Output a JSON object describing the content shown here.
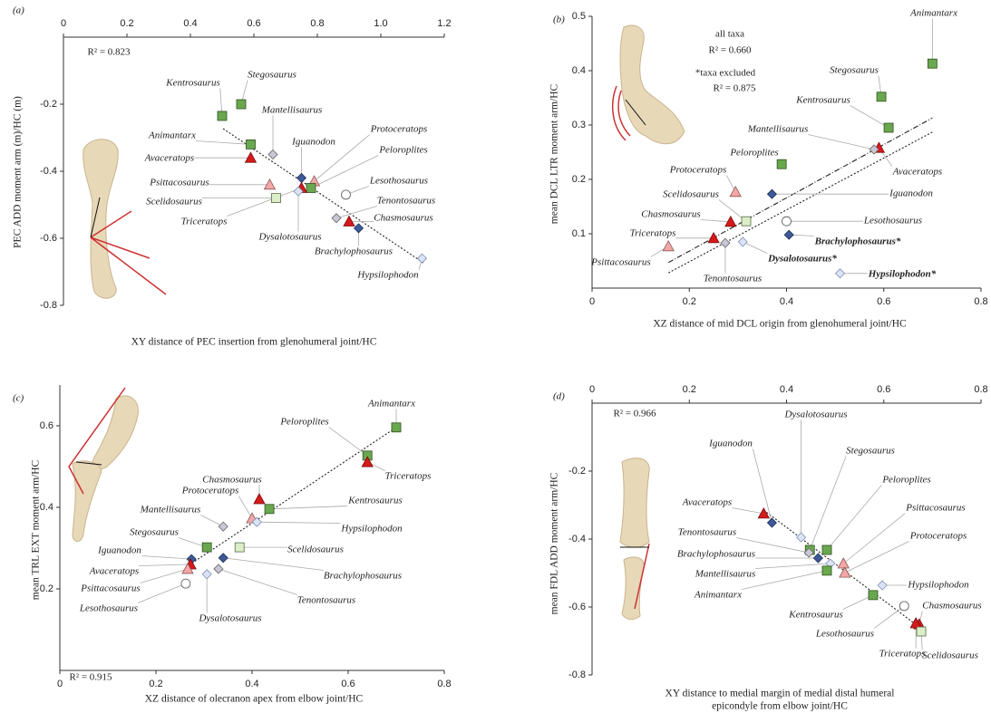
{
  "marker_styles": {
    "sq": {
      "shape": "square",
      "fill": "#6aa84f",
      "stroke": "#2f4f1f"
    },
    "sq-l": {
      "shape": "square",
      "fill": "#dcedc8",
      "stroke": "#556b4a"
    },
    "tri": {
      "shape": "triangle",
      "fill": "#d7191c",
      "stroke": "#7a0b0b"
    },
    "tri-l": {
      "shape": "triangle",
      "fill": "#f4a7a7",
      "stroke": "#8a5555"
    },
    "dia": {
      "shape": "diamond",
      "fill": "#3d5a98",
      "stroke": "#1f2f55"
    },
    "dia-l": {
      "shape": "diamond",
      "fill": "#dbe4f5",
      "stroke": "#7d8fb5"
    },
    "dia-g": {
      "shape": "diamond",
      "fill": "#c9c6d6",
      "stroke": "#666"
    },
    "circ": {
      "shape": "circle",
      "fill": "#ffffff",
      "stroke": "#555"
    }
  },
  "chart_data": [
    {
      "type": "scatter",
      "panel_label": "(a)",
      "y_label": "PEC ADD moment arm (m)/HC (m)",
      "x_label": [
        "XY distance of PEC insertion from glenohumeral joint/HC"
      ],
      "annotations": [
        "R² = 0.823"
      ],
      "x_axis": "top",
      "xlim": [
        0,
        1.2
      ],
      "ylim": [
        -0.8,
        0
      ],
      "xticks": [
        0,
        0.2,
        0.4,
        0.6,
        0.8,
        {
          "value": 1,
          "label": "1.0"
        },
        1.2
      ],
      "yticks": [
        -0.2,
        -0.4,
        -0.6,
        -0.8
      ],
      "labels": [
        "Kentrosaurus",
        "Stegosaurus",
        "Animantarx",
        "Avaceratops",
        "Mantellisaurus",
        "Iguanodon",
        "Protoceratops",
        "Peloroplites",
        "Triceratops",
        "Psittacosaurus",
        "Scelidosaurus",
        "Lesothosaurus",
        "Tenontosaurus",
        "Chasmosaurus",
        "Brachylophosaurus",
        "Hypsilophodon",
        "Dysalotosaurus"
      ],
      "x": [
        0.5,
        0.56,
        0.59,
        0.59,
        0.66,
        0.75,
        0.79,
        0.78,
        0.75,
        0.65,
        0.67,
        0.89,
        0.86,
        0.9,
        0.93,
        1.13,
        0.74
      ],
      "values": [
        -0.235,
        -0.2,
        -0.32,
        -0.36,
        -0.35,
        -0.42,
        -0.43,
        -0.45,
        -0.45,
        -0.44,
        -0.48,
        -0.47,
        -0.54,
        -0.55,
        -0.57,
        -0.66,
        -0.46
      ],
      "markers": [
        "sq",
        "sq",
        "sq",
        "tri",
        "dia-g",
        "dia",
        "tri-l",
        "sq",
        "tri",
        "tri-l",
        "sq-l",
        "circ",
        "dia-g",
        "tri",
        "dia",
        "dia-l",
        "dia-l"
      ],
      "fit_lines": [
        {
          "x": [
            0.503,
            1.134
          ],
          "y": [
            -0.273,
            -0.673
          ],
          "dash": "2,2"
        }
      ]
    },
    {
      "type": "scatter",
      "panel_label": "(b)",
      "y_label": "mean DCL LTR moment arm/HC",
      "x_label": [
        "XZ distance of mid DCL origin from glenohumeral joint/HC"
      ],
      "annotations": [
        "all taxa",
        "R² = 0.660",
        "*taxa excluded",
        "R² = 0.875"
      ],
      "x_axis": "bottom",
      "xlim": [
        0,
        0.8
      ],
      "ylim": [
        0,
        0.5
      ],
      "xticks": [
        0,
        0.2,
        0.4,
        0.6,
        0.8
      ],
      "yticks": [
        0.1,
        0.2,
        0.3,
        0.4,
        0.5
      ],
      "labels": [
        "Animantarx",
        "Stegosaurus",
        "Kentrosaurus",
        "Avaceratops",
        "Mantellisaurus",
        "Peloroplites",
        "Protoceratops",
        "Iguanodon",
        "Scelidosaurus",
        "Chasmosaurus",
        "Lesothosaurus",
        "Triceratops",
        "Brachylophosaurus*",
        "Psittacosaurus",
        "Tenontosaurus",
        "Dysalotosaurus*",
        "Hypsilophodon*"
      ],
      "x": [
        0.7,
        0.595,
        0.61,
        0.59,
        0.58,
        0.39,
        0.295,
        0.37,
        0.317,
        0.285,
        0.4,
        0.25,
        0.405,
        0.157,
        0.274,
        0.31,
        0.51
      ],
      "values": [
        0.413,
        0.352,
        0.295,
        0.258,
        0.255,
        0.228,
        0.177,
        0.173,
        0.123,
        0.122,
        0.123,
        0.092,
        0.098,
        0.077,
        0.083,
        0.085,
        0.027
      ],
      "markers": [
        "sq",
        "sq",
        "sq",
        "tri",
        "dia-g",
        "sq",
        "tri-l",
        "dia",
        "sq-l",
        "tri",
        "circ",
        "tri",
        "dia",
        "tri-l",
        "dia-g",
        "dia-l",
        "dia-l"
      ],
      "fit_lines": [
        {
          "x": [
            0.157,
            0.7
          ],
          "y": [
            0.047,
            0.313
          ],
          "dash": "6,2,1,2"
        },
        {
          "x": [
            0.157,
            0.7
          ],
          "y": [
            0.028,
            0.287
          ],
          "dash": "2,2"
        }
      ]
    },
    {
      "type": "scatter",
      "panel_label": "(c)",
      "y_label": "mean TRL EXT moment arm/HC",
      "x_label": [
        "XZ distance of olecranon apex from elbow joint/HC"
      ],
      "annotations": [
        "R² = 0.915"
      ],
      "x_axis": "bottom",
      "xlim": [
        0,
        0.8
      ],
      "ylim": [
        0,
        0.7
      ],
      "xticks": [
        0,
        0.2,
        0.4,
        0.6,
        0.8
      ],
      "yticks": [
        0.2,
        0.4,
        0.6
      ],
      "labels": [
        "Animantarx",
        "Peloroplites",
        "Triceratops",
        "Chasmosaurus",
        "Kentrosaurus",
        "Protoceratops",
        "Mantellisaurus",
        "Hypsilophodon",
        "Stegosaurus",
        "Scelidosaurus",
        "Iguanodon",
        "Brachylophosaurus",
        "Avaceratops",
        "Psittacosaurus",
        "Tenontosaurus",
        "Dysalotosaurus",
        "Lesothosaurus"
      ],
      "x": [
        0.7,
        0.64,
        0.64,
        0.415,
        0.436,
        0.4,
        0.34,
        0.41,
        0.306,
        0.374,
        0.274,
        0.34,
        0.272,
        0.266,
        0.33,
        0.306,
        0.262
      ],
      "values": [
        0.596,
        0.527,
        0.511,
        0.42,
        0.396,
        0.373,
        0.353,
        0.364,
        0.302,
        0.302,
        0.273,
        0.276,
        0.26,
        0.249,
        0.249,
        0.236,
        0.213
      ],
      "markers": [
        "sq",
        "sq",
        "tri",
        "tri",
        "sq",
        "tri-l",
        "dia-g",
        "dia-l",
        "sq",
        "sq-l",
        "dia",
        "dia",
        "tri",
        "tri-l",
        "dia-g",
        "dia-l",
        "circ"
      ],
      "fit_lines": [
        {
          "x": [
            0.262,
            0.7
          ],
          "y": [
            0.253,
            0.596
          ],
          "dash": "2,2"
        }
      ]
    },
    {
      "type": "scatter",
      "panel_label": "(d)",
      "y_label": "mean FDL ADD moment arm/HC",
      "x_label": [
        "XY distance to medial margin of medial distal humeral",
        "epicondyle from elbow joint/HC"
      ],
      "annotations": [
        "R² = 0.966"
      ],
      "x_axis": "top",
      "xlim": [
        0,
        0.8
      ],
      "ylim": [
        -0.8,
        0
      ],
      "xticks": [
        0,
        0.2,
        0.4,
        0.6,
        0.8
      ],
      "yticks": [
        -0.2,
        -0.4,
        -0.6,
        -0.8
      ],
      "labels": [
        "Avaceratops",
        "Iguanodon",
        "Dysalotosaurus",
        "Stegosaurus",
        "Peloroplites",
        "Psittacosaurus",
        "Protoceratops",
        "Tenontosaurus",
        "Brachylophosaurus",
        "Mantellisaurus",
        "Animantarx",
        "Hypsilophodon",
        "Kentrosaurus",
        "Lesothosaurus",
        "Chasmosaurus",
        "Triceratops",
        "Scelidosaurus"
      ],
      "x": [
        0.353,
        0.37,
        0.43,
        0.448,
        0.483,
        0.517,
        0.52,
        0.446,
        0.465,
        0.49,
        0.483,
        0.597,
        0.578,
        0.642,
        0.673,
        0.666,
        0.677
      ],
      "values": [
        -0.325,
        -0.352,
        -0.395,
        -0.432,
        -0.432,
        -0.472,
        -0.499,
        -0.44,
        -0.456,
        -0.472,
        -0.493,
        -0.536,
        -0.565,
        -0.597,
        -0.651,
        -0.648,
        -0.672
      ],
      "markers": [
        "tri",
        "dia",
        "dia-l",
        "sq",
        "sq",
        "tri-l",
        "tri-l",
        "dia-g",
        "dia",
        "dia-l",
        "sq",
        "dia-l",
        "sq",
        "circ",
        "tri",
        "tri",
        "sq-l"
      ],
      "fit_lines": [
        {
          "x": [
            0.353,
            0.685
          ],
          "y": [
            -0.315,
            -0.672
          ],
          "dash": "2,2"
        }
      ]
    }
  ]
}
